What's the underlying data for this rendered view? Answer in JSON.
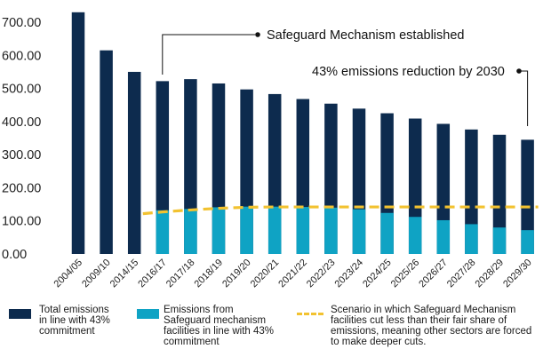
{
  "chart_data": {
    "type": "bar",
    "categories": [
      "2004/05",
      "2009/10",
      "2014/15",
      "2016/17",
      "2017/18",
      "2018/19",
      "2019/20",
      "2020/21",
      "2021/22",
      "2022/23",
      "2023/24",
      "2024/25",
      "2025/26",
      "2026/27",
      "2027/28",
      "2028/29",
      "2029/30"
    ],
    "series": [
      {
        "name": "Total emissions in line with 43% commitment",
        "type": "bar",
        "color": "#0d2b4e",
        "values": [
          730,
          615,
          550,
          522,
          528,
          515,
          497,
          483,
          468,
          454,
          439,
          425,
          409,
          393,
          376,
          360,
          345
        ]
      },
      {
        "name": "Emissions from Safeguard mechanism facilities in line with 43% commitment",
        "type": "bar",
        "color": "#0fa3c4",
        "values": [
          null,
          null,
          null,
          132,
          136,
          141,
          143,
          143,
          142,
          140,
          135,
          124,
          112,
          102,
          90,
          80,
          72
        ]
      },
      {
        "name": "Scenario in which Safeguard Mechanism facilities cut less than their fair share of emissions, meaning other sectors are forced to make deeper cuts.",
        "type": "line",
        "style": "dashed",
        "color": "#f2c230",
        "values": [
          null,
          null,
          null,
          127,
          133,
          138,
          141,
          142,
          142,
          142,
          142,
          142,
          142,
          142,
          142,
          142,
          142
        ]
      }
    ],
    "yticks": [
      "0.00",
      "100.00",
      "200.00",
      "300.00",
      "400.00",
      "500.00",
      "600.00",
      "700.00"
    ],
    "ylim": [
      0,
      760
    ],
    "title": "",
    "xlabel": "",
    "ylabel": "",
    "annotations": [
      {
        "text": "Safeguard Mechanism established",
        "category": "2016/17"
      },
      {
        "text": "43% emissions reduction by 2030",
        "category": "2029/30"
      }
    ]
  },
  "legend": {
    "total_lines": [
      "Total emissions",
      "in line with 43%",
      "commitment"
    ],
    "safeguard_lines": [
      "Emissions from",
      "Safeguard mechanism",
      "facilities in line with 43%",
      "commitment"
    ],
    "scenario_lines": [
      "Scenario in which Safeguard Mechanism",
      "facilities cut less than their fair share of",
      "emissions, meaning other sectors are forced",
      "to make deeper cuts."
    ]
  }
}
